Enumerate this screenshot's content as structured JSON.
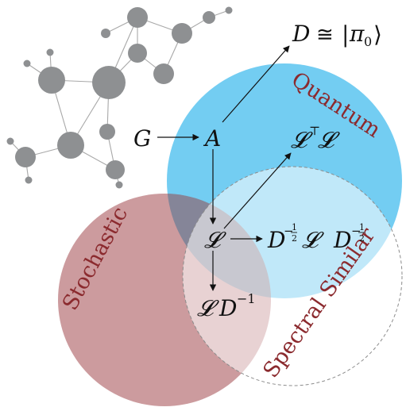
{
  "sets": {
    "quantum": {
      "label": "Quantum",
      "color": "#5bc4f0"
    },
    "stochastic": {
      "label": "Stochastic",
      "color": "#b97478"
    },
    "spectral": {
      "label": "Spectral Similar",
      "color": "#ffffff"
    }
  },
  "math": {
    "G": "G",
    "A": "A",
    "D_star": "D",
    "cong": "≅",
    "ket_open": "|",
    "pi": "π",
    "pi_sub": "0",
    "ket_close": "⟩",
    "L_top_L": "𝓛",
    "T_sup": "⊤",
    "L_top_R": "𝓛",
    "L_center": "𝓛",
    "norm_D1": "D",
    "norm_exp1": "−",
    "norm_half1_num": "1",
    "norm_half1_den": "2",
    "norm_L": "𝓛",
    "norm_D2": "D",
    "norm_exp2": "−",
    "norm_half2_num": "1",
    "norm_half2_den": "2",
    "rw_L": "𝓛",
    "rw_D": "D",
    "rw_exp": "−1"
  },
  "colors": {
    "graph_node": "#8e9092",
    "graph_edge": "#a8a8a8",
    "label_red": "#8b2a2e"
  }
}
